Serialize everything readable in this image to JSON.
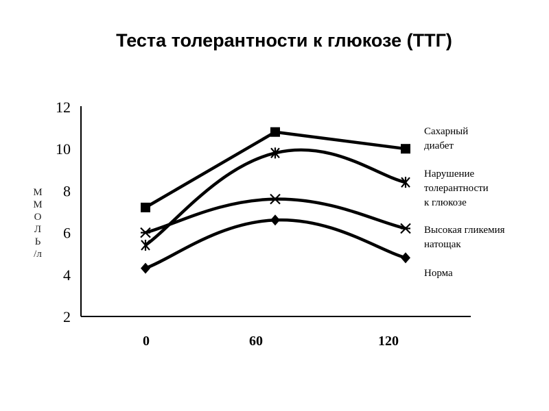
{
  "chart_data": {
    "type": "line",
    "title": "Теста толерантности к глюкозе (ТТГ)",
    "xlabel": "",
    "ylabel": "ММОЛЬ/л",
    "ylabel_letters": [
      "М",
      "М",
      "О",
      "Л",
      "Ь",
      "/л"
    ],
    "x": [
      0,
      60,
      120
    ],
    "x_ticks": [
      "0",
      "60",
      "120"
    ],
    "y_ticks": [
      "12",
      "10",
      "8",
      "6",
      "4",
      "2"
    ],
    "ylim": [
      2,
      12
    ],
    "grid": false,
    "legend_placement": "right",
    "series": [
      {
        "name": "Сахарный диабет",
        "legend_lines": [
          "Сахарный",
          "диабет"
        ],
        "marker": "square",
        "values": [
          7.2,
          10.8,
          10.0
        ]
      },
      {
        "name": "Нарушение толерантности к глюкозе",
        "legend_lines": [
          "Нарушение",
          "толерантности",
          "к глюкозе"
        ],
        "marker": "asterisk",
        "values": [
          5.4,
          9.8,
          8.4
        ]
      },
      {
        "name": "Высокая гликемия натощак",
        "legend_lines": [
          "Высокая гликемия",
          "натощак"
        ],
        "marker": "cross",
        "values": [
          6.0,
          7.6,
          6.2
        ]
      },
      {
        "name": "Норма",
        "legend_lines": [
          "Норма"
        ],
        "marker": "diamond",
        "values": [
          4.3,
          6.6,
          4.8
        ]
      }
    ]
  }
}
